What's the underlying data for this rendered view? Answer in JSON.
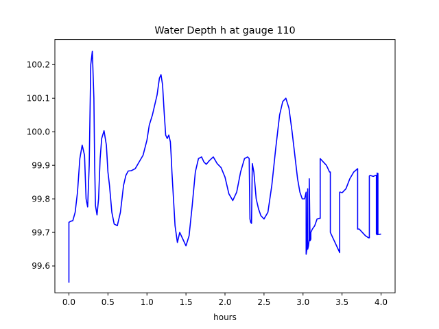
{
  "chart_data": {
    "type": "line",
    "title": "Water Depth h at gauge 110",
    "xlabel": "hours",
    "ylabel": "",
    "xlim": [
      -0.18,
      4.18
    ],
    "ylim": [
      99.52,
      100.275
    ],
    "xticks": [
      "0.0",
      "0.5",
      "1.0",
      "1.5",
      "2.0",
      "2.5",
      "3.0",
      "3.5",
      "4.0"
    ],
    "yticks": [
      "99.6",
      "99.7",
      "99.8",
      "99.9",
      "100.0",
      "100.1",
      "100.2"
    ],
    "grid": false,
    "colors": {
      "series": "#0000ff"
    },
    "series": [
      {
        "name": "",
        "x": [
          0.0,
          0.0,
          0.02,
          0.05,
          0.08,
          0.11,
          0.14,
          0.17,
          0.2,
          0.22,
          0.24,
          0.26,
          0.27,
          0.28,
          0.3,
          0.32,
          0.33,
          0.34,
          0.36,
          0.38,
          0.4,
          0.42,
          0.45,
          0.48,
          0.5,
          0.52,
          0.55,
          0.58,
          0.62,
          0.66,
          0.7,
          0.73,
          0.76,
          0.8,
          0.85,
          0.9,
          0.95,
          1.0,
          1.03,
          1.07,
          1.1,
          1.13,
          1.16,
          1.18,
          1.2,
          1.22,
          1.24,
          1.26,
          1.28,
          1.3,
          1.31,
          1.32,
          1.34,
          1.36,
          1.39,
          1.42,
          1.46,
          1.5,
          1.54,
          1.58,
          1.62,
          1.66,
          1.7,
          1.73,
          1.76,
          1.8,
          1.85,
          1.9,
          1.95,
          2.0,
          2.05,
          2.1,
          2.15,
          2.2,
          2.25,
          2.29,
          2.31,
          2.32,
          2.33,
          2.34,
          2.35,
          2.37,
          2.4,
          2.43,
          2.46,
          2.5,
          2.55,
          2.6,
          2.65,
          2.7,
          2.74,
          2.78,
          2.82,
          2.86,
          2.9,
          2.93,
          2.96,
          2.99,
          3.02,
          3.04,
          3.04,
          3.05,
          3.06,
          3.06,
          3.07,
          3.08,
          3.08,
          3.09,
          3.1,
          3.1,
          3.12,
          3.15,
          3.18,
          3.21,
          3.22,
          3.22,
          3.26,
          3.3,
          3.34,
          3.35,
          3.35,
          3.4,
          3.44,
          3.47,
          3.47,
          3.48,
          3.5,
          3.55,
          3.6,
          3.65,
          3.7,
          3.7,
          3.72,
          3.76,
          3.8,
          3.84,
          3.85,
          3.85,
          3.86,
          3.9,
          3.92,
          3.93,
          3.94,
          3.94,
          3.95,
          3.95,
          3.96,
          3.96,
          4.0
        ],
        "y": [
          99.55,
          99.73,
          99.733,
          99.735,
          99.76,
          99.82,
          99.92,
          99.96,
          99.93,
          99.8,
          99.776,
          99.9,
          100.05,
          100.2,
          100.24,
          100.1,
          99.9,
          99.78,
          99.752,
          99.8,
          99.92,
          99.98,
          100.003,
          99.96,
          99.88,
          99.84,
          99.76,
          99.725,
          99.72,
          99.76,
          99.84,
          99.87,
          99.883,
          99.884,
          99.89,
          99.91,
          99.93,
          99.975,
          100.02,
          100.05,
          100.08,
          100.11,
          100.16,
          100.17,
          100.14,
          100.06,
          99.99,
          99.98,
          99.99,
          99.97,
          99.93,
          99.88,
          99.8,
          99.72,
          99.67,
          99.7,
          99.68,
          99.66,
          99.69,
          99.78,
          99.88,
          99.92,
          99.925,
          99.91,
          99.903,
          99.914,
          99.925,
          99.905,
          99.893,
          99.865,
          99.815,
          99.795,
          99.82,
          99.88,
          99.92,
          99.925,
          99.92,
          99.74,
          99.73,
          99.727,
          99.905,
          99.88,
          99.8,
          99.77,
          99.75,
          99.74,
          99.76,
          99.84,
          99.95,
          100.05,
          100.09,
          100.1,
          100.07,
          100.0,
          99.92,
          99.86,
          99.82,
          99.8,
          99.8,
          99.82,
          99.635,
          99.65,
          99.83,
          99.65,
          99.66,
          99.68,
          99.86,
          99.675,
          99.68,
          99.7,
          99.71,
          99.72,
          99.74,
          99.742,
          99.742,
          99.92,
          99.91,
          99.9,
          99.88,
          99.88,
          99.7,
          99.675,
          99.655,
          99.64,
          99.82,
          99.82,
          99.818,
          99.83,
          99.86,
          99.88,
          99.89,
          99.71,
          99.71,
          99.7,
          99.69,
          99.684,
          99.684,
          99.868,
          99.87,
          99.867,
          99.869,
          99.87,
          99.87,
          99.695,
          99.877,
          99.693,
          99.876,
          99.694,
          99.695
        ]
      }
    ]
  }
}
